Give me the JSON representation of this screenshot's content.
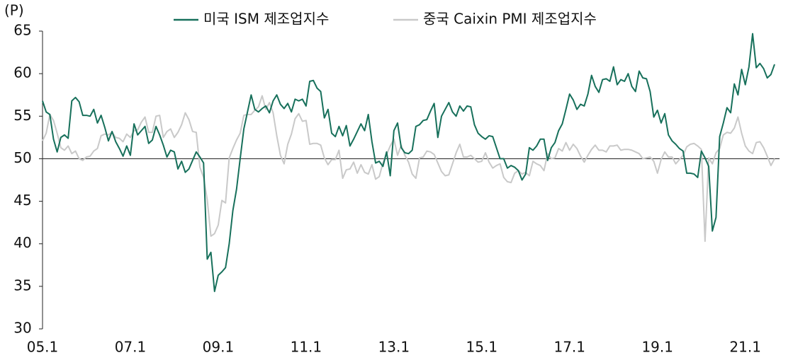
{
  "chart_data": {
    "type": "line",
    "y_unit": "(P)",
    "categories": [
      "05.1",
      null,
      null,
      null,
      null,
      null,
      null,
      null,
      null,
      null,
      null,
      null,
      null,
      null,
      null,
      null,
      null,
      null,
      null,
      null,
      null,
      null,
      null,
      null,
      "07.1",
      null,
      null,
      null,
      null,
      null,
      null,
      null,
      null,
      null,
      null,
      null,
      null,
      null,
      null,
      null,
      null,
      null,
      null,
      null,
      null,
      null,
      null,
      null,
      "09.1",
      null,
      null,
      null,
      null,
      null,
      null,
      null,
      null,
      null,
      null,
      null,
      null,
      null,
      null,
      null,
      null,
      null,
      null,
      null,
      null,
      null,
      null,
      null,
      "11.1",
      null,
      null,
      null,
      null,
      null,
      null,
      null,
      null,
      null,
      null,
      null,
      null,
      null,
      null,
      null,
      null,
      null,
      null,
      null,
      null,
      null,
      null,
      null,
      "13.1",
      null,
      null,
      null,
      null,
      null,
      null,
      null,
      null,
      null,
      null,
      null,
      null,
      null,
      null,
      null,
      null,
      null,
      null,
      null,
      null,
      null,
      null,
      null,
      "15.1",
      null,
      null,
      null,
      null,
      null,
      null,
      null,
      null,
      null,
      null,
      null,
      null,
      null,
      null,
      null,
      null,
      null,
      null,
      null,
      null,
      null,
      null,
      null,
      "17.1",
      null,
      null,
      null,
      null,
      null,
      null,
      null,
      null,
      null,
      null,
      null,
      null,
      null,
      null,
      null,
      null,
      null,
      null,
      null,
      null,
      null,
      null,
      null,
      "19.1",
      null,
      null,
      null,
      null,
      null,
      null,
      null,
      null,
      null,
      null,
      null,
      null,
      null,
      null,
      null,
      null,
      null,
      null,
      null,
      null,
      null,
      null,
      null,
      "21.1",
      null,
      null,
      null,
      null,
      null,
      null,
      null,
      null
    ],
    "series": [
      {
        "name": "미국 ISM 제조업지수",
        "color": "#17705b",
        "values": [
          56.8,
          55.5,
          55.2,
          52.3,
          50.8,
          52.5,
          52.8,
          52.4,
          56.8,
          57.2,
          56.7,
          55.1,
          55.1,
          55.0,
          55.8,
          54.2,
          55.1,
          53.7,
          52.1,
          53.2,
          52.0,
          51.2,
          50.3,
          51.5,
          50.4,
          54.1,
          52.8,
          53.3,
          53.8,
          51.8,
          52.2,
          53.8,
          52.8,
          51.6,
          50.2,
          51.0,
          50.8,
          48.8,
          49.7,
          48.4,
          48.8,
          49.8,
          50.8,
          50.2,
          49.5,
          38.2,
          39.0,
          34.4,
          36.3,
          36.7,
          37.2,
          40.0,
          43.9,
          46.4,
          50.0,
          53.5,
          55.5,
          57.5,
          55.8,
          55.5,
          55.9,
          56.2,
          55.4,
          56.8,
          57.5,
          56.4,
          55.9,
          56.5,
          55.5,
          57.0,
          56.8,
          57.0,
          56.2,
          59.1,
          59.2,
          58.3,
          57.9,
          54.8,
          55.8,
          53.0,
          52.6,
          53.8,
          52.7,
          53.9,
          51.5,
          52.3,
          53.2,
          54.1,
          53.3,
          55.2,
          52.0,
          49.5,
          49.7,
          49.1,
          50.8,
          48.0,
          53.3,
          54.2,
          51.3,
          50.7,
          50.6,
          51.0,
          53.8,
          54.0,
          54.5,
          54.6,
          55.6,
          56.5,
          52.5,
          55.0,
          55.8,
          56.6,
          55.5,
          55.0,
          56.2,
          55.6,
          56.2,
          56.1,
          54.0,
          53.0,
          52.6,
          52.3,
          52.7,
          52.6,
          51.3,
          50.0,
          50.0,
          48.9,
          49.2,
          49.0,
          48.6,
          47.5,
          48.2,
          51.3,
          51.0,
          51.5,
          52.3,
          52.3,
          49.8,
          51.3,
          51.9,
          53.3,
          54.1,
          55.8,
          57.6,
          56.9,
          55.8,
          56.4,
          56.2,
          57.6,
          59.8,
          58.5,
          57.8,
          59.3,
          59.4,
          59.1,
          60.8,
          58.7,
          59.3,
          59.1,
          60.0,
          58.5,
          57.9,
          60.3,
          59.5,
          59.4,
          57.9,
          54.9,
          55.7,
          54.2,
          55.3,
          52.8,
          52.1,
          51.7,
          51.2,
          50.9,
          48.3,
          48.3,
          48.2,
          47.8,
          50.9,
          50.1,
          49.1,
          41.5,
          43.1,
          52.6,
          54.2,
          56.0,
          55.4,
          58.8,
          57.5,
          60.5,
          58.7,
          60.8,
          64.7,
          60.7,
          61.2,
          60.6,
          59.5,
          59.9,
          61.1
        ]
      },
      {
        "name": "중국 Caixin PMI 제조업지수",
        "color": "#c9c9c9",
        "values": [
          52.1,
          53.0,
          55.2,
          54.5,
          53.0,
          51.3,
          51.0,
          51.5,
          50.6,
          50.9,
          50.0,
          49.8,
          50.2,
          50.3,
          50.9,
          51.2,
          52.7,
          52.9,
          52.8,
          53.1,
          52.5,
          52.4,
          52.0,
          52.9,
          52.5,
          53.3,
          53.4,
          54.3,
          54.9,
          53.1,
          53.1,
          55.0,
          55.1,
          52.5,
          53.2,
          53.5,
          52.5,
          53.1,
          54.0,
          55.4,
          54.6,
          53.2,
          53.1,
          49.0,
          47.8,
          45.2,
          40.9,
          41.2,
          42.2,
          45.1,
          44.8,
          50.1,
          51.2,
          52.2,
          53.0,
          55.1,
          55.2,
          55.2,
          55.7,
          56.1,
          57.4,
          55.8,
          56.6,
          55.4,
          52.7,
          50.4,
          49.4,
          51.7,
          52.9,
          54.7,
          55.3,
          54.4,
          54.5,
          51.7,
          51.8,
          51.8,
          51.6,
          50.1,
          49.3,
          49.9,
          49.9,
          51.0,
          47.7,
          48.7,
          48.8,
          49.6,
          48.3,
          49.3,
          48.4,
          48.2,
          49.3,
          47.6,
          47.9,
          49.5,
          50.5,
          51.5,
          52.3,
          50.4,
          51.6,
          50.4,
          49.6,
          48.2,
          47.7,
          50.1,
          50.2,
          50.9,
          50.8,
          50.5,
          49.5,
          48.5,
          48.0,
          48.1,
          49.4,
          50.7,
          51.7,
          50.2,
          50.2,
          50.4,
          50.0,
          49.6,
          49.7,
          50.7,
          49.6,
          48.9,
          49.2,
          49.4,
          47.8,
          47.3,
          47.2,
          48.3,
          48.6,
          48.2,
          48.4,
          48.0,
          49.7,
          49.4,
          49.2,
          48.6,
          50.6,
          50.0,
          50.1,
          51.2,
          50.9,
          51.9,
          51.0,
          51.7,
          51.2,
          50.3,
          49.6,
          50.4,
          51.1,
          51.6,
          51.0,
          51.0,
          50.8,
          51.5,
          51.5,
          51.6,
          51.0,
          51.1,
          51.1,
          51.0,
          50.8,
          50.6,
          50.0,
          50.1,
          50.2,
          49.7,
          48.3,
          49.9,
          50.8,
          50.2,
          50.2,
          49.4,
          49.9,
          50.4,
          51.4,
          51.7,
          51.8,
          51.5,
          51.1,
          40.3,
          50.1,
          49.4,
          50.7,
          51.2,
          52.8,
          53.1,
          53.0,
          53.6,
          54.9,
          53.0,
          51.5,
          50.9,
          50.6,
          51.9,
          52.0,
          51.3,
          50.3,
          49.2,
          50.0
        ]
      }
    ],
    "ylim": [
      30,
      65
    ],
    "yticks": [
      30,
      35,
      40,
      45,
      50,
      55,
      60,
      65
    ],
    "reference_line": 50,
    "reference_color": "#333333",
    "legend": "top"
  }
}
